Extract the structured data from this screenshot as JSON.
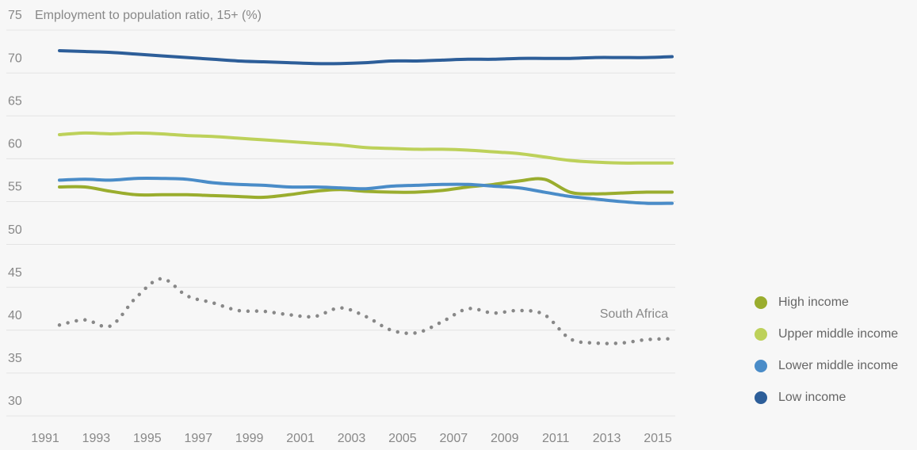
{
  "chart_data": {
    "type": "line",
    "title": "Employment to population ratio, 15+ (%)",
    "x": [
      1991,
      1992,
      1993,
      1994,
      1995,
      1996,
      1997,
      1998,
      1999,
      2000,
      2001,
      2002,
      2003,
      2004,
      2005,
      2006,
      2007,
      2008,
      2009,
      2010,
      2011,
      2012,
      2013,
      2014,
      2015
    ],
    "xlim": [
      1991,
      2015
    ],
    "xticks": [
      1991,
      1993,
      1995,
      1997,
      1999,
      2001,
      2003,
      2005,
      2007,
      2009,
      2011,
      2013,
      2015
    ],
    "ylim": [
      30,
      75
    ],
    "yticks": [
      30,
      35,
      40,
      45,
      50,
      55,
      60,
      65,
      70,
      75
    ],
    "grid": true,
    "legend": "right",
    "series": [
      {
        "name": "High income",
        "color": "#9aad2e",
        "values": [
          56.7,
          56.7,
          56.2,
          55.8,
          55.8,
          55.8,
          55.7,
          55.6,
          55.5,
          55.8,
          56.2,
          56.4,
          56.2,
          56.1,
          56.1,
          56.3,
          56.7,
          57.0,
          57.4,
          57.6,
          56.1,
          55.9,
          56.0,
          56.1,
          56.1
        ]
      },
      {
        "name": "Upper middle income",
        "color": "#bdd15a",
        "values": [
          62.8,
          63.0,
          62.9,
          63.0,
          62.9,
          62.7,
          62.6,
          62.4,
          62.2,
          62.0,
          61.8,
          61.6,
          61.3,
          61.2,
          61.1,
          61.1,
          61.0,
          60.8,
          60.6,
          60.2,
          59.8,
          59.6,
          59.5,
          59.5,
          59.5
        ]
      },
      {
        "name": "Lower middle income",
        "color": "#4a8cc8",
        "values": [
          57.5,
          57.6,
          57.5,
          57.7,
          57.7,
          57.6,
          57.2,
          57.0,
          56.9,
          56.7,
          56.7,
          56.6,
          56.5,
          56.8,
          56.9,
          57.0,
          57.0,
          56.8,
          56.6,
          56.1,
          55.6,
          55.3,
          55.0,
          54.8,
          54.8
        ]
      },
      {
        "name": "Low income",
        "color": "#2d5e99",
        "values": [
          72.6,
          72.5,
          72.4,
          72.2,
          72.0,
          71.8,
          71.6,
          71.4,
          71.3,
          71.2,
          71.1,
          71.1,
          71.2,
          71.4,
          71.4,
          71.5,
          71.6,
          71.6,
          71.7,
          71.7,
          71.7,
          71.8,
          71.8,
          71.8,
          71.9
        ]
      }
    ],
    "annotation": {
      "text": "South Africa",
      "color": "#888888",
      "values": [
        40.6,
        41.2,
        40.5,
        43.8,
        46.0,
        44.0,
        43.2,
        42.3,
        42.2,
        41.8,
        41.6,
        42.6,
        41.6,
        40.0,
        39.7,
        41.0,
        42.5,
        42.0,
        42.3,
        41.8,
        39.0,
        38.5,
        38.5,
        38.9,
        39.0
      ]
    }
  }
}
